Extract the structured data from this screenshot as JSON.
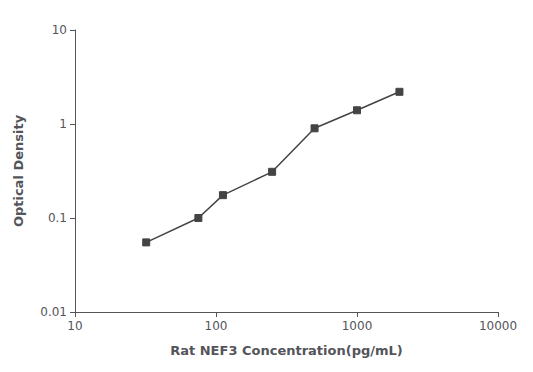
{
  "chart_data": {
    "type": "line",
    "x": [
      32,
      75,
      112,
      250,
      500,
      1000,
      2000
    ],
    "values": [
      0.055,
      0.1,
      0.175,
      0.31,
      0.9,
      1.4,
      2.2
    ],
    "xlabel": "Rat NEF3 Concentration(pg/mL)",
    "ylabel": "Optical Density",
    "xlim": [
      10,
      10000
    ],
    "ylim": [
      0.01,
      10
    ],
    "xticks": [
      10,
      100,
      1000,
      10000
    ],
    "yticks": [
      0.01,
      0.1,
      1,
      10
    ],
    "log": true,
    "grid": false,
    "color": "#444444",
    "marker": "square"
  }
}
